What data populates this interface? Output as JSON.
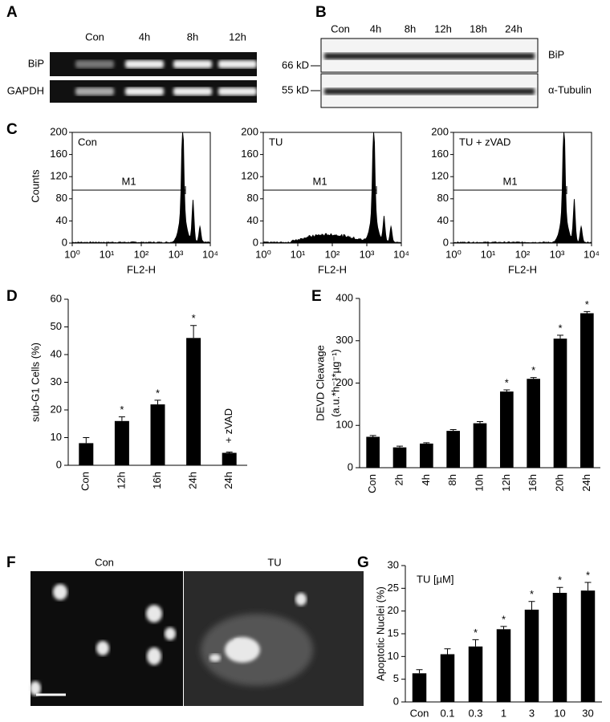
{
  "figure": {
    "A": {
      "letter": "A",
      "lanes": [
        "Con",
        "4h",
        "8h",
        "12h"
      ],
      "rows": [
        "BiP",
        "GAPDH"
      ]
    },
    "B": {
      "letter": "B",
      "lanes": [
        "Con",
        "4h",
        "8h",
        "12h",
        "18h",
        "24h"
      ],
      "markers": [
        "66 kD",
        "55 kD"
      ],
      "rows": [
        "BiP",
        "α-Tubulin"
      ]
    },
    "C": {
      "letter": "C",
      "plots": [
        "Con",
        "TU",
        "TU + zVAD"
      ],
      "ylabel": "Counts",
      "xlabel": "FL2-H",
      "gate": "M1",
      "ylim": [
        0,
        200
      ],
      "yticks": [
        0,
        40,
        80,
        120,
        160,
        200
      ],
      "xscale": "log",
      "xlim": [
        1,
        10000
      ],
      "xticks": [
        {
          "value": 1,
          "label": "10⁰"
        },
        {
          "value": 10,
          "label": "10¹"
        },
        {
          "value": 100,
          "label": "10²"
        },
        {
          "value": 1000,
          "label": "10³"
        },
        {
          "value": 10000,
          "label": "10⁴"
        }
      ]
    },
    "F": {
      "letter": "F",
      "labels": [
        "Con",
        "TU"
      ]
    }
  },
  "chart_data": [
    {
      "type": "bar",
      "panel": "D",
      "ylabel": [
        "sub-G1 Cells (%)"
      ],
      "categories": [
        "Con",
        "12h",
        "16h",
        "24h",
        "24h"
      ],
      "values": [
        8,
        16,
        22,
        46,
        4.5
      ],
      "errors": [
        2,
        1.5,
        1.5,
        4.5,
        0.3
      ],
      "significance": [
        null,
        "*",
        "*",
        "*",
        null
      ],
      "annotation": "+ zVAD",
      "color": "#000000",
      "ylim": [
        0,
        60
      ],
      "yticks": [
        0,
        10,
        20,
        30,
        40,
        50,
        60
      ]
    },
    {
      "type": "bar",
      "panel": "E",
      "ylabel": [
        "DEVD Cleavage",
        "(a.u.*h⁻¹*µg⁻¹)"
      ],
      "categories": [
        "Con",
        "2h",
        "4h",
        "8h",
        "10h",
        "12h",
        "16h",
        "20h",
        "24h"
      ],
      "values": [
        73,
        48,
        57,
        87,
        105,
        180,
        210,
        305,
        365
      ],
      "errors": [
        3,
        3,
        2,
        3,
        4,
        4,
        3,
        8,
        4
      ],
      "significance": [
        null,
        null,
        null,
        null,
        null,
        "*",
        "*",
        "*",
        "*"
      ],
      "color": "#000000",
      "ylim": [
        0,
        400
      ],
      "yticks": [
        0,
        100,
        200,
        300,
        400
      ]
    },
    {
      "type": "bar",
      "panel": "G",
      "ylabel": [
        "Apoptotic Nuclei (%)"
      ],
      "categories": [
        "Con",
        "0.1",
        "0.3",
        "1",
        "3",
        "10",
        "30"
      ],
      "values": [
        6.3,
        10.5,
        12.2,
        16,
        20.3,
        24,
        24.5
      ],
      "errors": [
        0.8,
        1.2,
        1.5,
        0.6,
        1.8,
        1.2,
        1.8
      ],
      "significance": [
        null,
        null,
        "*",
        "*",
        "*",
        "*",
        "*"
      ],
      "annotation": "TU [µM]",
      "color": "#000000",
      "ylim": [
        0,
        30
      ],
      "yticks": [
        0,
        5,
        10,
        15,
        20,
        25,
        30
      ]
    }
  ]
}
